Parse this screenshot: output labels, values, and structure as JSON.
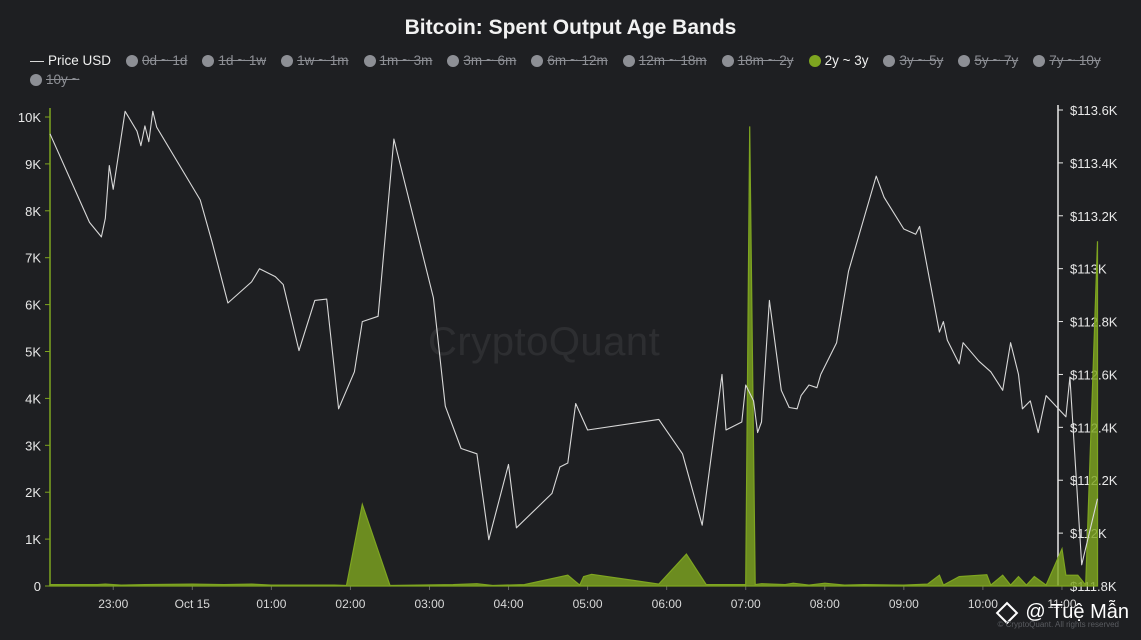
{
  "chart_data": {
    "type": "area",
    "title": "Bitcoin: Spent Output Age Bands",
    "watermark": "CryptoQuant",
    "credit": "@ Tuệ Mẫn",
    "copyright": "© CryptoQuant. All rights reserved",
    "legend": [
      {
        "label": "Price USD",
        "marker": "line",
        "active": true,
        "color": "#d8d8d8"
      },
      {
        "label": "0d ~ 1d",
        "marker": "dot",
        "active": false,
        "color": "#8d8f95"
      },
      {
        "label": "1d ~ 1w",
        "marker": "dot",
        "active": false,
        "color": "#8d8f95"
      },
      {
        "label": "1w ~ 1m",
        "marker": "dot",
        "active": false,
        "color": "#8d8f95"
      },
      {
        "label": "1m ~ 3m",
        "marker": "dot",
        "active": false,
        "color": "#8d8f95"
      },
      {
        "label": "3m ~ 6m",
        "marker": "dot",
        "active": false,
        "color": "#8d8f95"
      },
      {
        "label": "6m ~ 12m",
        "marker": "dot",
        "active": false,
        "color": "#8d8f95"
      },
      {
        "label": "12m ~ 18m",
        "marker": "dot",
        "active": false,
        "color": "#8d8f95"
      },
      {
        "label": "18m ~ 2y",
        "marker": "dot",
        "active": false,
        "color": "#8d8f95"
      },
      {
        "label": "2y ~ 3y",
        "marker": "dot",
        "active": true,
        "color": "#7ea520"
      },
      {
        "label": "3y ~ 5y",
        "marker": "dot",
        "active": false,
        "color": "#8d8f95"
      },
      {
        "label": "5y ~ 7y",
        "marker": "dot",
        "active": false,
        "color": "#8d8f95"
      },
      {
        "label": "7y ~ 10y",
        "marker": "dot",
        "active": false,
        "color": "#8d8f95"
      },
      {
        "label": "10y ~",
        "marker": "dot",
        "active": false,
        "color": "#8d8f95"
      }
    ],
    "x_range_hours": [
      -1.8,
      10.95
    ],
    "x_ticks": [
      {
        "label": "23:00",
        "t": -1
      },
      {
        "label": "Oct 15",
        "t": 0
      },
      {
        "label": "01:00",
        "t": 1
      },
      {
        "label": "02:00",
        "t": 2
      },
      {
        "label": "03:00",
        "t": 3
      },
      {
        "label": "04:00",
        "t": 4
      },
      {
        "label": "05:00",
        "t": 5
      },
      {
        "label": "06:00",
        "t": 6
      },
      {
        "label": "07:00",
        "t": 7
      },
      {
        "label": "08:00",
        "t": 8
      },
      {
        "label": "09:00",
        "t": 9
      },
      {
        "label": "10:00",
        "t": 10
      },
      {
        "label": "11:00",
        "t": 11
      }
    ],
    "y_left": {
      "min": 0,
      "max": 10000,
      "ticks": [
        {
          "v": 0,
          "label": "0"
        },
        {
          "v": 1000,
          "label": "1K"
        },
        {
          "v": 2000,
          "label": "2K"
        },
        {
          "v": 3000,
          "label": "3K"
        },
        {
          "v": 4000,
          "label": "4K"
        },
        {
          "v": 5000,
          "label": "5K"
        },
        {
          "v": 6000,
          "label": "6K"
        },
        {
          "v": 7000,
          "label": "7K"
        },
        {
          "v": 8000,
          "label": "8K"
        },
        {
          "v": 9000,
          "label": "9K"
        },
        {
          "v": 10000,
          "label": "10K"
        }
      ]
    },
    "y_right": {
      "min": 111800,
      "max": 113600,
      "ticks": [
        {
          "v": 111800,
          "label": "$111.8K"
        },
        {
          "v": 112000,
          "label": "$112K"
        },
        {
          "v": 112200,
          "label": "$112.2K"
        },
        {
          "v": 112400,
          "label": "$112.4K"
        },
        {
          "v": 112600,
          "label": "$112.6K"
        },
        {
          "v": 112800,
          "label": "$112.8K"
        },
        {
          "v": 113000,
          "label": "$113K"
        },
        {
          "v": 113200,
          "label": "$113.2K"
        },
        {
          "v": 113400,
          "label": "$113.4K"
        },
        {
          "v": 113600,
          "label": "$113.6K"
        }
      ]
    },
    "series": [
      {
        "name": "Price USD",
        "axis": "right",
        "type": "line",
        "color": "#d8d8d8",
        "points": [
          [
            -1.8,
            113510
          ],
          [
            -1.3,
            113175
          ],
          [
            -1.15,
            113120
          ],
          [
            -1.1,
            113190
          ],
          [
            -1.05,
            113390
          ],
          [
            -1.0,
            113300
          ],
          [
            -0.85,
            113595
          ],
          [
            -0.7,
            113520
          ],
          [
            -0.65,
            113465
          ],
          [
            -0.6,
            113540
          ],
          [
            -0.55,
            113480
          ],
          [
            -0.5,
            113595
          ],
          [
            -0.45,
            113535
          ],
          [
            0.1,
            113260
          ],
          [
            0.25,
            113100
          ],
          [
            0.45,
            112870
          ],
          [
            0.75,
            112950
          ],
          [
            0.85,
            113000
          ],
          [
            1.05,
            112970
          ],
          [
            1.15,
            112940
          ],
          [
            1.35,
            112690
          ],
          [
            1.55,
            112880
          ],
          [
            1.7,
            112885
          ],
          [
            1.85,
            112470
          ],
          [
            2.05,
            112610
          ],
          [
            2.15,
            112800
          ],
          [
            2.35,
            112820
          ],
          [
            2.55,
            113490
          ],
          [
            2.85,
            113130
          ],
          [
            3.05,
            112890
          ],
          [
            3.2,
            112480
          ],
          [
            3.4,
            112320
          ],
          [
            3.6,
            112300
          ],
          [
            3.75,
            111975
          ],
          [
            4.0,
            112260
          ],
          [
            4.1,
            112020
          ],
          [
            4.55,
            112150
          ],
          [
            4.65,
            112250
          ],
          [
            4.75,
            112265
          ],
          [
            4.85,
            112490
          ],
          [
            5.0,
            112390
          ],
          [
            5.9,
            112430
          ],
          [
            6.2,
            112300
          ],
          [
            6.45,
            112030
          ],
          [
            6.7,
            112600
          ],
          [
            6.75,
            112390
          ],
          [
            6.95,
            112420
          ],
          [
            7.0,
            112560
          ],
          [
            7.1,
            112500
          ],
          [
            7.15,
            112380
          ],
          [
            7.2,
            112420
          ],
          [
            7.3,
            112880
          ],
          [
            7.45,
            112540
          ],
          [
            7.55,
            112475
          ],
          [
            7.65,
            112470
          ],
          [
            7.7,
            112520
          ],
          [
            7.8,
            112560
          ],
          [
            7.9,
            112550
          ],
          [
            7.95,
            112600
          ],
          [
            8.15,
            112720
          ],
          [
            8.3,
            112990
          ],
          [
            8.65,
            113350
          ],
          [
            8.75,
            113270
          ],
          [
            9.0,
            113150
          ],
          [
            9.15,
            113130
          ],
          [
            9.2,
            113160
          ],
          [
            9.45,
            112760
          ],
          [
            9.5,
            112800
          ],
          [
            9.55,
            112730
          ],
          [
            9.7,
            112640
          ],
          [
            9.75,
            112720
          ],
          [
            9.95,
            112650
          ],
          [
            10.1,
            112610
          ],
          [
            10.25,
            112540
          ],
          [
            10.35,
            112720
          ],
          [
            10.45,
            112600
          ],
          [
            10.5,
            112470
          ],
          [
            10.6,
            112500
          ],
          [
            10.7,
            112380
          ],
          [
            10.8,
            112520
          ],
          [
            11.05,
            112440
          ],
          [
            11.1,
            112590
          ],
          [
            11.25,
            111880
          ],
          [
            11.45,
            112130
          ]
        ]
      },
      {
        "name": "2y ~ 3y",
        "axis": "left",
        "type": "area",
        "color": "#7ea520",
        "points": [
          [
            -1.8,
            30
          ],
          [
            -1.2,
            30
          ],
          [
            -1.1,
            40
          ],
          [
            -0.9,
            20
          ],
          [
            -0.6,
            30
          ],
          [
            0.0,
            40
          ],
          [
            0.4,
            30
          ],
          [
            0.75,
            40
          ],
          [
            1.0,
            20
          ],
          [
            1.8,
            20
          ],
          [
            1.95,
            10
          ],
          [
            2.15,
            1740
          ],
          [
            2.5,
            10
          ],
          [
            3.3,
            30
          ],
          [
            3.6,
            50
          ],
          [
            3.8,
            10
          ],
          [
            4.2,
            30
          ],
          [
            4.75,
            230
          ],
          [
            4.9,
            20
          ],
          [
            4.95,
            200
          ],
          [
            5.05,
            250
          ],
          [
            5.9,
            40
          ],
          [
            6.25,
            680
          ],
          [
            6.5,
            30
          ],
          [
            7.0,
            30
          ],
          [
            7.05,
            9800
          ],
          [
            7.12,
            30
          ],
          [
            7.2,
            50
          ],
          [
            7.5,
            30
          ],
          [
            7.6,
            60
          ],
          [
            7.8,
            20
          ],
          [
            8.0,
            60
          ],
          [
            8.25,
            20
          ],
          [
            8.5,
            30
          ],
          [
            9.0,
            20
          ],
          [
            9.3,
            40
          ],
          [
            9.45,
            230
          ],
          [
            9.5,
            20
          ],
          [
            9.7,
            200
          ],
          [
            10.05,
            240
          ],
          [
            10.1,
            20
          ],
          [
            10.25,
            230
          ],
          [
            10.35,
            20
          ],
          [
            10.45,
            200
          ],
          [
            10.55,
            20
          ],
          [
            10.65,
            200
          ],
          [
            10.8,
            20
          ],
          [
            11.0,
            790
          ],
          [
            11.05,
            230
          ],
          [
            11.2,
            230
          ],
          [
            11.3,
            20
          ],
          [
            11.45,
            7350
          ]
        ]
      }
    ]
  }
}
